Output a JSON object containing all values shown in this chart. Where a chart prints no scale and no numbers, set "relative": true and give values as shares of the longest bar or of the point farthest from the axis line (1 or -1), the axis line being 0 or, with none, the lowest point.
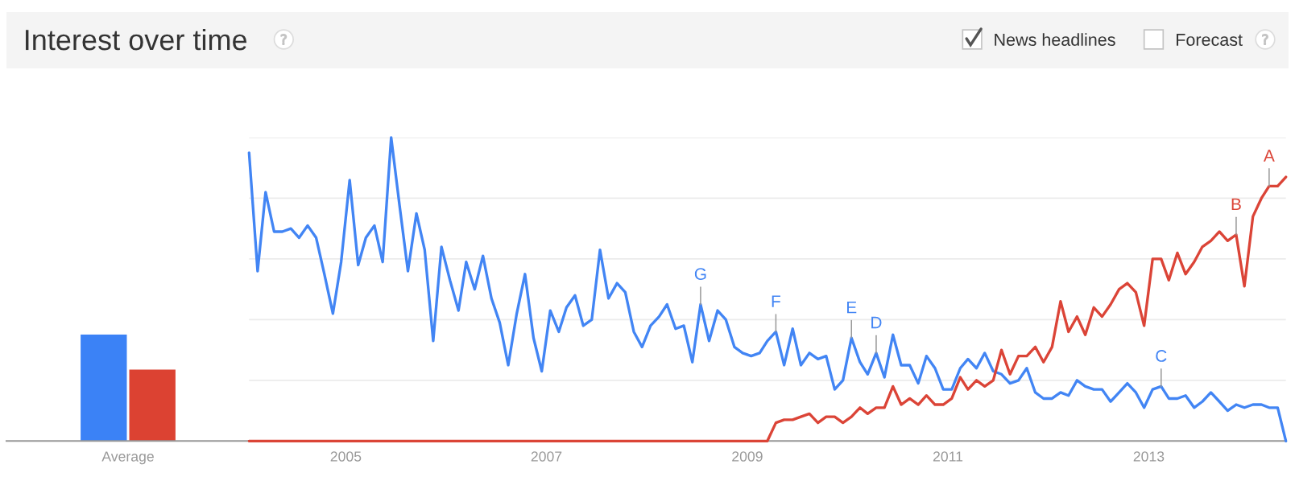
{
  "chart_data": [
    {
      "type": "other",
      "title": "Interest over time",
      "annotations": [
        "News headlines",
        "Forecast"
      ]
    },
    {
      "type": "bar",
      "relative": true,
      "categories": [
        "Average"
      ],
      "tick_labels": "x",
      "series": [
        {
          "color": "#3b82f6",
          "values": [
            1
          ]
        },
        {
          "color": "#dc4232",
          "values": [
            0.67
          ]
        }
      ]
    },
    {
      "type": "line",
      "relative": true,
      "x": [
        "2004-01-15",
        "2004-02-15",
        "2004-03-15",
        "2004-04-15",
        "2004-05-15",
        "2004-06-15",
        "2004-07-15",
        "2004-08-15",
        "2004-09-15",
        "2004-10-15",
        "2004-11-15",
        "2004-12-15",
        "2005-01-15",
        "2005-02-15",
        "2005-03-15",
        "2005-04-15",
        "2005-05-15",
        "2005-06-15",
        "2005-07-15",
        "2005-08-15",
        "2005-09-15",
        "2005-10-15",
        "2005-11-15",
        "2005-12-15",
        "2006-01-15",
        "2006-02-15",
        "2006-03-15",
        "2006-04-15",
        "2006-05-15",
        "2006-06-15",
        "2006-07-15",
        "2006-08-15",
        "2006-09-15",
        "2006-10-15",
        "2006-11-15",
        "2006-12-15",
        "2007-01-15",
        "2007-02-15",
        "2007-03-15",
        "2007-04-15",
        "2007-05-15",
        "2007-06-15",
        "2007-07-15",
        "2007-08-15",
        "2007-09-15",
        "2007-10-15",
        "2007-11-15",
        "2007-12-15",
        "2008-01-15",
        "2008-02-15",
        "2008-03-15",
        "2008-04-15",
        "2008-05-15",
        "2008-06-15",
        "2008-07-15",
        "2008-08-15",
        "2008-09-15",
        "2008-10-15",
        "2008-11-15",
        "2008-12-15",
        "2009-01-15",
        "2009-02-15",
        "2009-03-15",
        "2009-04-15",
        "2009-05-15",
        "2009-06-15",
        "2009-07-15",
        "2009-08-15",
        "2009-09-15",
        "2009-10-15",
        "2009-11-15",
        "2009-12-15",
        "2010-01-15",
        "2010-02-15",
        "2010-03-15",
        "2010-04-15",
        "2010-05-15",
        "2010-06-15",
        "2010-07-15",
        "2010-08-15",
        "2010-09-15",
        "2010-10-15",
        "2010-11-15",
        "2010-12-15",
        "2011-01-15",
        "2011-02-15",
        "2011-03-15",
        "2011-04-15",
        "2011-05-15",
        "2011-06-15",
        "2011-07-15",
        "2011-08-15",
        "2011-09-15",
        "2011-10-15",
        "2011-11-15",
        "2011-12-15",
        "2012-01-15",
        "2012-02-15",
        "2012-03-15",
        "2012-04-15",
        "2012-05-15",
        "2012-06-15",
        "2012-07-15",
        "2012-08-15",
        "2012-09-15",
        "2012-10-15",
        "2012-11-15",
        "2012-12-15",
        "2013-01-15",
        "2013-02-15",
        "2013-03-15",
        "2013-04-15",
        "2013-05-15",
        "2013-06-15",
        "2013-07-15",
        "2013-08-15",
        "2013-09-15",
        "2013-10-15",
        "2013-11-15",
        "2013-12-15",
        "2014-01-15",
        "2014-02-15",
        "2014-03-15",
        "2014-04-15",
        "2014-05-15"
      ],
      "xlim": [
        "2004-01-15",
        "2014-05-15"
      ],
      "xticks": [
        "2005",
        "2007",
        "2009",
        "2011",
        "2013"
      ],
      "grid": "y",
      "tick_labels": "x",
      "series": [
        {
          "color": "#4285f4",
          "values": [
            0.95,
            0.56,
            0.82,
            0.69,
            0.69,
            0.7,
            0.67,
            0.71,
            0.67,
            0.55,
            0.42,
            0.59,
            0.86,
            0.58,
            0.67,
            0.71,
            0.59,
            1.0,
            0.78,
            0.56,
            0.75,
            0.63,
            0.33,
            0.64,
            0.53,
            0.43,
            0.59,
            0.5,
            0.61,
            0.47,
            0.39,
            0.25,
            0.42,
            0.55,
            0.34,
            0.23,
            0.43,
            0.36,
            0.44,
            0.48,
            0.38,
            0.4,
            0.63,
            0.47,
            0.52,
            0.49,
            0.36,
            0.31,
            0.38,
            0.41,
            0.45,
            0.37,
            0.38,
            0.26,
            0.45,
            0.33,
            0.43,
            0.4,
            0.31,
            0.29,
            0.28,
            0.29,
            0.33,
            0.36,
            0.25,
            0.37,
            0.25,
            0.29,
            0.27,
            0.28,
            0.17,
            0.2,
            0.34,
            0.26,
            0.22,
            0.29,
            0.21,
            0.35,
            0.25,
            0.25,
            0.19,
            0.28,
            0.24,
            0.17,
            0.17,
            0.24,
            0.27,
            0.24,
            0.29,
            0.23,
            0.22,
            0.19,
            0.2,
            0.24,
            0.16,
            0.14,
            0.14,
            0.16,
            0.15,
            0.2,
            0.18,
            0.17,
            0.17,
            0.13,
            0.16,
            0.19,
            0.16,
            0.11,
            0.17,
            0.18,
            0.14,
            0.14,
            0.15,
            0.11,
            0.13,
            0.16,
            0.13,
            0.1,
            0.12,
            0.11,
            0.12,
            0.12,
            0.11,
            0.11,
            0
          ]
        },
        {
          "color": "#db4437",
          "values": [
            0,
            0,
            0,
            0,
            0,
            0,
            0,
            0,
            0,
            0,
            0,
            0,
            0,
            0,
            0,
            0,
            0,
            0,
            0,
            0,
            0,
            0,
            0,
            0,
            0,
            0,
            0,
            0,
            0,
            0,
            0,
            0,
            0,
            0,
            0,
            0,
            0,
            0,
            0,
            0,
            0,
            0,
            0,
            0,
            0,
            0,
            0,
            0,
            0,
            0,
            0,
            0,
            0,
            0,
            0,
            0,
            0,
            0,
            0,
            0,
            0,
            0,
            0,
            0.06,
            0.07,
            0.07,
            0.08,
            0.09,
            0.06,
            0.08,
            0.08,
            0.06,
            0.08,
            0.11,
            0.09,
            0.11,
            0.11,
            0.18,
            0.12,
            0.14,
            0.12,
            0.15,
            0.12,
            0.12,
            0.14,
            0.21,
            0.17,
            0.2,
            0.18,
            0.2,
            0.3,
            0.22,
            0.28,
            0.28,
            0.31,
            0.26,
            0.31,
            0.46,
            0.36,
            0.41,
            0.35,
            0.44,
            0.41,
            0.45,
            0.5,
            0.52,
            0.49,
            0.38,
            0.6,
            0.6,
            0.53,
            0.62,
            0.55,
            0.59,
            0.64,
            0.66,
            0.69,
            0.66,
            0.68,
            0.51,
            0.74,
            0.8,
            0.84,
            0.84,
            0.87
          ]
        }
      ],
      "annotations": [
        {
          "text": "G",
          "x": "2008-07-15",
          "y": 0.45
        },
        {
          "text": "F",
          "x": "2009-04-15",
          "y": 0.36
        },
        {
          "text": "E",
          "x": "2010-01-15",
          "y": 0.34
        },
        {
          "text": "D",
          "x": "2010-04-15",
          "y": 0.29
        },
        {
          "text": "C",
          "x": "2013-02-15",
          "y": 0.18
        },
        {
          "text": "B",
          "x": "2013-11-15",
          "y": 0.68
        },
        {
          "text": "A",
          "x": "2014-03-15",
          "y": 0.84
        }
      ]
    }
  ]
}
